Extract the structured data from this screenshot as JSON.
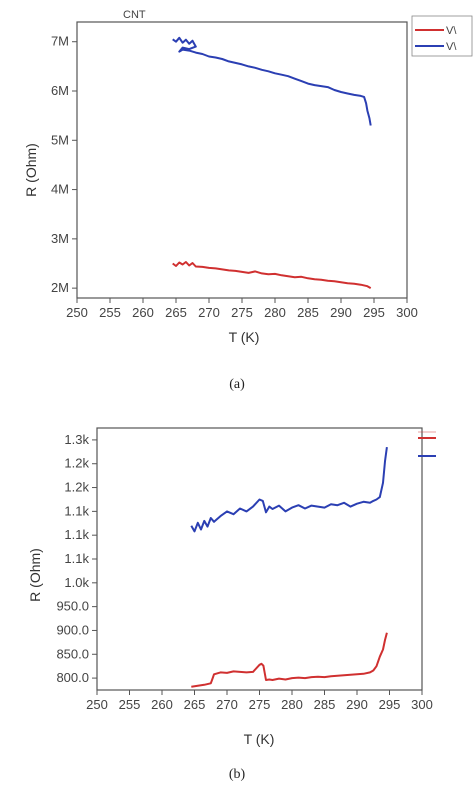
{
  "figure": {
    "captions": [
      "(a)",
      "(b)"
    ]
  },
  "chart_data": [
    {
      "type": "line",
      "title": "CNT",
      "xlabel": "T (K)",
      "ylabel": "R (Ohm)",
      "xlim": [
        250,
        300
      ],
      "ylim": [
        1800000,
        7400000
      ],
      "x_ticks": [
        250,
        255,
        260,
        265,
        270,
        275,
        280,
        285,
        290,
        295,
        300
      ],
      "y_ticks": [
        {
          "value": 2000000,
          "label": "2M"
        },
        {
          "value": 3000000,
          "label": "3M"
        },
        {
          "value": 4000000,
          "label": "4M"
        },
        {
          "value": 5000000,
          "label": "5M"
        },
        {
          "value": 6000000,
          "label": "6M"
        },
        {
          "value": 7000000,
          "label": "7M"
        }
      ],
      "legend": {
        "placement": "outside-top-right",
        "labels": [
          "V\\",
          "V\\"
        ]
      },
      "series": [
        {
          "color": "#d03030",
          "x": [
            264.5,
            265,
            265.5,
            266,
            266.5,
            267,
            267.5,
            268,
            269,
            270,
            271,
            272,
            273,
            274,
            275,
            276,
            277,
            278,
            279,
            280,
            281,
            282,
            283,
            284,
            285,
            286,
            287,
            288,
            289,
            290,
            291,
            292,
            293,
            294,
            294.5
          ],
          "y": [
            2500000,
            2450000,
            2520000,
            2480000,
            2530000,
            2460000,
            2510000,
            2440000,
            2430000,
            2410000,
            2400000,
            2380000,
            2360000,
            2350000,
            2330000,
            2310000,
            2340000,
            2300000,
            2280000,
            2290000,
            2260000,
            2240000,
            2220000,
            2230000,
            2200000,
            2180000,
            2170000,
            2150000,
            2140000,
            2120000,
            2100000,
            2090000,
            2070000,
            2040000,
            2000000
          ]
        },
        {
          "color": "#2b3fb3",
          "x": [
            264.5,
            265,
            265.5,
            266,
            266.5,
            267,
            267.5,
            268,
            267,
            266,
            265.5,
            266,
            267,
            268,
            269,
            270,
            271,
            272,
            273,
            274,
            275,
            276,
            277,
            278,
            279,
            280,
            281,
            282,
            283,
            284,
            285,
            286,
            287,
            288,
            289,
            290,
            291,
            292,
            293,
            293.5,
            293.8,
            294,
            294.3,
            294.5
          ],
          "y": [
            7050000,
            7000000,
            7080000,
            6980000,
            7040000,
            6960000,
            7020000,
            6900000,
            6850000,
            6880000,
            6800000,
            6840000,
            6820000,
            6780000,
            6750000,
            6700000,
            6680000,
            6650000,
            6600000,
            6570000,
            6540000,
            6500000,
            6470000,
            6430000,
            6400000,
            6360000,
            6330000,
            6300000,
            6250000,
            6200000,
            6150000,
            6120000,
            6100000,
            6080000,
            6020000,
            5980000,
            5950000,
            5920000,
            5900000,
            5880000,
            5750000,
            5600000,
            5450000,
            5300000
          ]
        }
      ]
    },
    {
      "type": "line",
      "xlabel": "T (K)",
      "ylabel": "R (Ohm)",
      "xlim": [
        250,
        300
      ],
      "ylim": [
        775,
        1325
      ],
      "x_ticks": [
        250,
        255,
        260,
        265,
        270,
        275,
        280,
        285,
        290,
        295,
        300
      ],
      "y_ticks": [
        {
          "value": 800,
          "label": "800.0"
        },
        {
          "value": 850,
          "label": "850.0"
        },
        {
          "value": 900,
          "label": "900.0"
        },
        {
          "value": 950,
          "label": "950.0"
        },
        {
          "value": 1000,
          "label": "1.0k"
        },
        {
          "value": 1050,
          "label": "1.1k"
        },
        {
          "value": 1100,
          "label": "1.1k"
        },
        {
          "value": 1150,
          "label": "1.1k"
        },
        {
          "value": 1200,
          "label": "1.2k"
        },
        {
          "value": 1250,
          "label": "1.2k"
        },
        {
          "value": 1300,
          "label": "1.3k"
        }
      ],
      "legend": {
        "placement": "outside-top-right"
      },
      "series": [
        {
          "color": "#d03030",
          "x": [
            264.5,
            265.5,
            266.5,
            267.5,
            267.8,
            268,
            269,
            270,
            271,
            272,
            273,
            274,
            275,
            275.3,
            275.6,
            276,
            276.5,
            277,
            278,
            279,
            280,
            281,
            282,
            283,
            284,
            285,
            286,
            287,
            288,
            289,
            290,
            291,
            292,
            292.5,
            293,
            293.5,
            294,
            294.3,
            294.6
          ],
          "y": [
            782,
            784,
            786,
            789,
            800,
            808,
            812,
            811,
            814,
            813,
            812,
            813,
            828,
            830,
            826,
            796,
            797,
            796,
            799,
            797,
            800,
            801,
            800,
            802,
            803,
            802,
            804,
            805,
            806,
            807,
            808,
            809,
            812,
            816,
            825,
            845,
            860,
            880,
            895
          ]
        },
        {
          "color": "#2b3fb3",
          "x": [
            264.5,
            265,
            265.5,
            266,
            266.5,
            267,
            267.5,
            268,
            269,
            270,
            271,
            272,
            273,
            274,
            275,
            275.5,
            276,
            276.5,
            277,
            278,
            279,
            280,
            281,
            282,
            283,
            284,
            285,
            286,
            287,
            288,
            289,
            290,
            291,
            292,
            292.5,
            293,
            293.5,
            294,
            294.3,
            294.6
          ],
          "y": [
            1120,
            1108,
            1126,
            1112,
            1130,
            1118,
            1136,
            1128,
            1140,
            1150,
            1144,
            1156,
            1150,
            1160,
            1175,
            1172,
            1148,
            1160,
            1155,
            1162,
            1150,
            1158,
            1163,
            1156,
            1162,
            1160,
            1158,
            1165,
            1163,
            1168,
            1160,
            1166,
            1170,
            1168,
            1172,
            1175,
            1180,
            1210,
            1255,
            1285
          ]
        }
      ]
    }
  ]
}
